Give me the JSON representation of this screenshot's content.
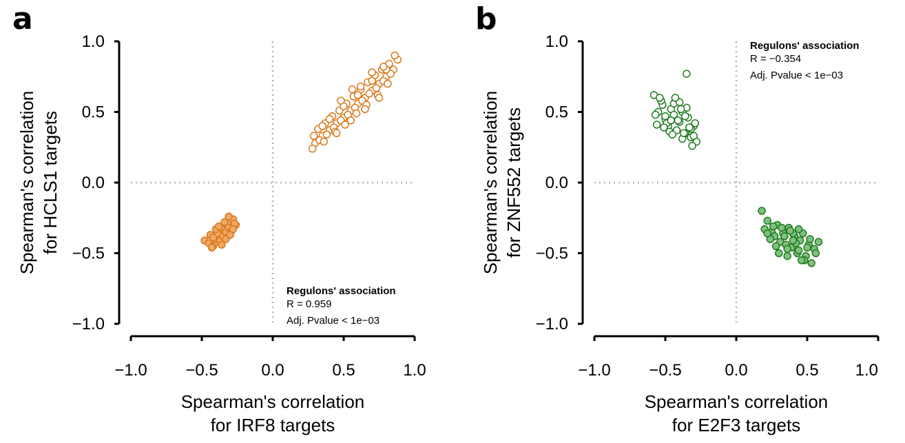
{
  "chart_data": [
    {
      "type": "scatter",
      "panel_label": "a",
      "xlabel": [
        "Spearman's correlation",
        "for IRF8 targets"
      ],
      "ylabel": [
        "Spearman's correlation",
        "for HCLS1 targets"
      ],
      "xlim": [
        -1.0,
        1.0
      ],
      "ylim": [
        -1.0,
        1.0
      ],
      "x_ticks": [
        "−1.0",
        "−0.5",
        "0.0",
        "0.5",
        "1.0"
      ],
      "y_ticks": [
        "−1.0",
        "−0.5",
        "0.0",
        "0.5",
        "1.0"
      ],
      "reference_lines": {
        "x": 0,
        "y": 0,
        "style": "dotted",
        "color": "#b3b3b3"
      },
      "annotation": {
        "title": "Regulons' association",
        "lines": [
          "R = 0.959",
          "Adj. Pvalue < 1e−03"
        ],
        "placement": "bottom-right"
      },
      "color": "#d9781a",
      "series": [
        {
          "fill": "#ffffff",
          "edge": "#d9781a",
          "x": [
            0.3,
            0.35,
            0.4,
            0.45,
            0.5,
            0.55,
            0.6,
            0.65,
            0.7,
            0.75,
            0.8,
            0.85,
            0.88,
            0.28,
            0.33,
            0.38,
            0.43,
            0.48,
            0.53,
            0.58,
            0.63,
            0.68,
            0.73,
            0.78,
            0.83,
            0.32,
            0.37,
            0.42,
            0.47,
            0.52,
            0.57,
            0.62,
            0.67,
            0.72,
            0.77,
            0.82,
            0.86,
            0.29,
            0.36,
            0.44,
            0.51,
            0.59,
            0.66,
            0.74,
            0.81,
            0.4,
            0.5,
            0.6,
            0.7,
            0.8,
            0.45,
            0.55,
            0.65,
            0.75,
            0.35,
            0.62,
            0.7,
            0.78,
            0.48,
            0.56
          ],
          "y": [
            0.28,
            0.33,
            0.37,
            0.42,
            0.46,
            0.51,
            0.56,
            0.6,
            0.65,
            0.7,
            0.75,
            0.8,
            0.87,
            0.24,
            0.3,
            0.34,
            0.39,
            0.44,
            0.48,
            0.53,
            0.58,
            0.63,
            0.67,
            0.72,
            0.77,
            0.38,
            0.42,
            0.47,
            0.51,
            0.56,
            0.61,
            0.66,
            0.71,
            0.76,
            0.8,
            0.84,
            0.9,
            0.33,
            0.29,
            0.36,
            0.41,
            0.49,
            0.55,
            0.62,
            0.7,
            0.45,
            0.54,
            0.62,
            0.72,
            0.8,
            0.35,
            0.44,
            0.52,
            0.6,
            0.4,
            0.68,
            0.78,
            0.82,
            0.58,
            0.66
          ]
        },
        {
          "fill": "#f0a866",
          "edge": "#d9781a",
          "x": [
            -0.48,
            -0.45,
            -0.42,
            -0.4,
            -0.38,
            -0.36,
            -0.34,
            -0.32,
            -0.3,
            -0.28,
            -0.26,
            -0.44,
            -0.41,
            -0.39,
            -0.37,
            -0.35,
            -0.33,
            -0.31,
            -0.29,
            -0.27,
            -0.43,
            -0.4,
            -0.36,
            -0.33,
            -0.3,
            -0.42,
            -0.38,
            -0.34,
            -0.31,
            -0.28
          ],
          "y": [
            -0.41,
            -0.43,
            -0.45,
            -0.42,
            -0.38,
            -0.35,
            -0.33,
            -0.3,
            -0.28,
            -0.26,
            -0.3,
            -0.37,
            -0.4,
            -0.36,
            -0.41,
            -0.38,
            -0.35,
            -0.32,
            -0.34,
            -0.29,
            -0.46,
            -0.33,
            -0.44,
            -0.4,
            -0.37,
            -0.39,
            -0.31,
            -0.28,
            -0.24,
            -0.33
          ]
        }
      ]
    },
    {
      "type": "scatter",
      "panel_label": "b",
      "xlabel": [
        "Spearman's correlation",
        "for E2F3 targets"
      ],
      "ylabel": [
        "Spearman's correlation",
        "for ZNF552 targets"
      ],
      "xlim": [
        -1.0,
        1.0
      ],
      "ylim": [
        -1.0,
        1.0
      ],
      "x_ticks": [
        "−1.0",
        "−0.5",
        "0.0",
        "0.5",
        "1.0"
      ],
      "y_ticks": [
        "−1.0",
        "−0.5",
        "0.0",
        "0.5",
        "1.0"
      ],
      "reference_lines": {
        "x": 0,
        "y": 0,
        "style": "dotted",
        "color": "#b3b3b3"
      },
      "annotation": {
        "title": "Regulons' association",
        "lines": [
          "R = −0.354",
          "Adj. Pvalue < 1e−03"
        ],
        "placement": "top-right"
      },
      "color": "#1f7a1f",
      "series": [
        {
          "fill": "#ffffff",
          "edge": "#1f7a1f",
          "x": [
            -0.58,
            -0.55,
            -0.52,
            -0.5,
            -0.48,
            -0.46,
            -0.44,
            -0.42,
            -0.4,
            -0.38,
            -0.36,
            -0.34,
            -0.32,
            -0.3,
            -0.28,
            -0.56,
            -0.53,
            -0.5,
            -0.47,
            -0.44,
            -0.41,
            -0.38,
            -0.35,
            -0.32,
            -0.29,
            -0.54,
            -0.49,
            -0.45,
            -0.4,
            -0.36,
            -0.33,
            -0.3,
            -0.57,
            -0.51,
            -0.43,
            -0.37,
            -0.31,
            -0.35,
            -0.46,
            -0.39
          ],
          "y": [
            0.62,
            0.5,
            0.55,
            0.45,
            0.4,
            0.52,
            0.48,
            0.37,
            0.43,
            0.5,
            0.35,
            0.46,
            0.32,
            0.4,
            0.29,
            0.41,
            0.58,
            0.47,
            0.36,
            0.56,
            0.44,
            0.31,
            0.53,
            0.38,
            0.42,
            0.6,
            0.42,
            0.34,
            0.57,
            0.47,
            0.39,
            0.33,
            0.48,
            0.39,
            0.6,
            0.35,
            0.26,
            0.77,
            0.44,
            0.52
          ]
        },
        {
          "fill": "#7fc07f",
          "edge": "#1f7a1f",
          "x": [
            0.18,
            0.2,
            0.22,
            0.25,
            0.27,
            0.29,
            0.31,
            0.33,
            0.35,
            0.37,
            0.39,
            0.41,
            0.43,
            0.45,
            0.47,
            0.49,
            0.51,
            0.53,
            0.55,
            0.58,
            0.24,
            0.28,
            0.32,
            0.36,
            0.4,
            0.44,
            0.48,
            0.52,
            0.3,
            0.34,
            0.38,
            0.42,
            0.46,
            0.5,
            0.26,
            0.36,
            0.44,
            0.56,
            0.22,
            0.4
          ],
          "y": [
            -0.2,
            -0.33,
            -0.27,
            -0.35,
            -0.38,
            -0.3,
            -0.42,
            -0.36,
            -0.44,
            -0.32,
            -0.46,
            -0.38,
            -0.5,
            -0.41,
            -0.36,
            -0.52,
            -0.44,
            -0.57,
            -0.47,
            -0.42,
            -0.4,
            -0.45,
            -0.32,
            -0.52,
            -0.36,
            -0.48,
            -0.55,
            -0.4,
            -0.5,
            -0.38,
            -0.34,
            -0.43,
            -0.55,
            -0.46,
            -0.31,
            -0.47,
            -0.33,
            -0.5,
            -0.36,
            -0.41
          ]
        }
      ]
    }
  ]
}
